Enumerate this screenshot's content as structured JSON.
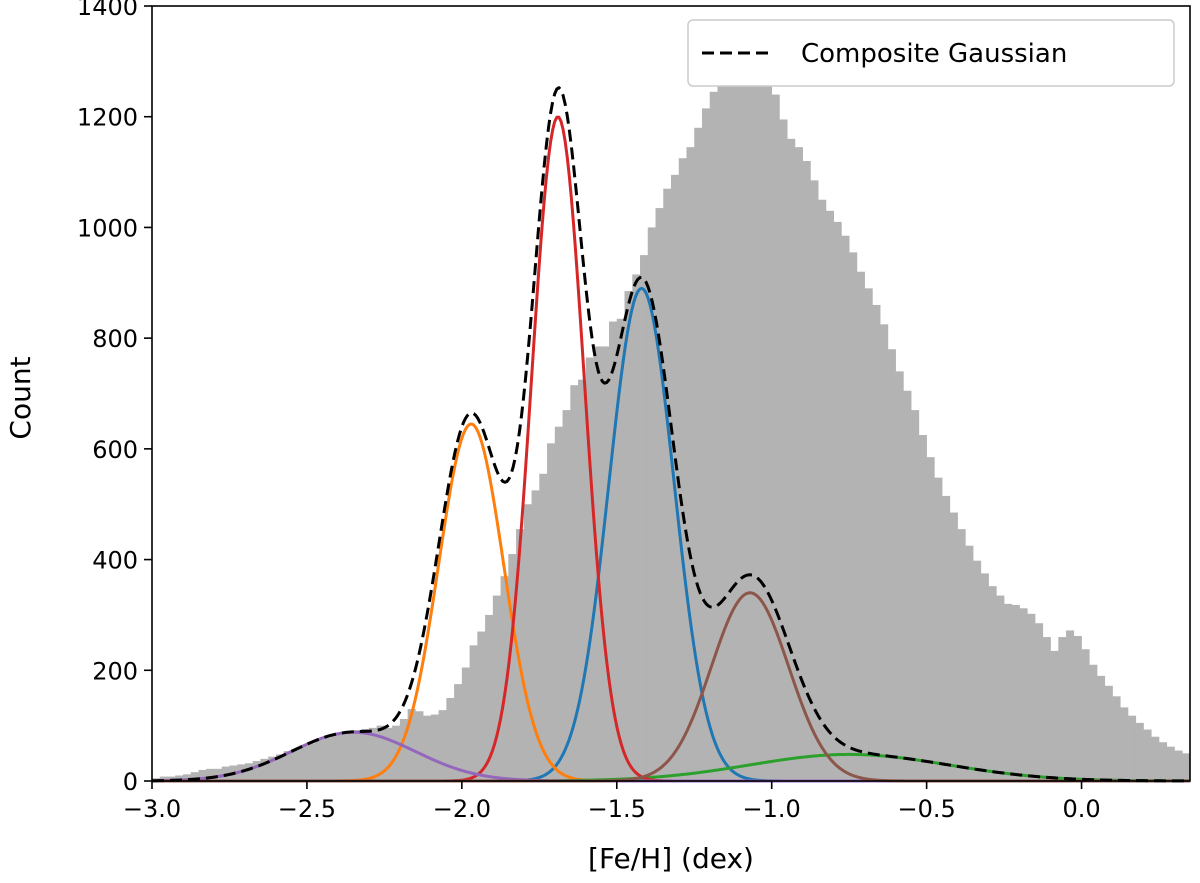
{
  "chart_data": {
    "type": "area",
    "title": "",
    "xlabel": "[Fe/H] (dex)",
    "ylabel": "Count",
    "xlim": [
      -3.0,
      0.35
    ],
    "ylim": [
      0,
      1400
    ],
    "x_ticks": [
      -3.0,
      -2.5,
      -2.0,
      -1.5,
      -1.0,
      -0.5,
      0.0
    ],
    "x_tick_labels": [
      "−3.0",
      "−2.5",
      "−2.0",
      "−1.5",
      "−1.0",
      "−0.5",
      "0.0"
    ],
    "y_ticks": [
      0,
      200,
      400,
      600,
      800,
      1000,
      1200,
      1400
    ],
    "y_tick_labels": [
      "0",
      "200",
      "400",
      "600",
      "800",
      "1000",
      "1200",
      "1400"
    ],
    "grid": false,
    "legend_position": "top-right",
    "histogram": {
      "name": "",
      "color": "#b3b3b3",
      "bin_width": 0.025,
      "bin_start": -3.0,
      "counts": [
        5,
        8,
        8,
        10,
        12,
        16,
        20,
        22,
        22,
        26,
        28,
        30,
        32,
        36,
        40,
        44,
        48,
        54,
        58,
        64,
        68,
        74,
        78,
        84,
        88,
        90,
        92,
        94,
        96,
        100,
        96,
        100,
        112,
        130,
        126,
        118,
        120,
        128,
        150,
        175,
        205,
        245,
        270,
        300,
        335,
        370,
        410,
        455,
        500,
        525,
        555,
        610,
        640,
        670,
        715,
        725,
        765,
        785,
        785,
        830,
        835,
        885,
        915,
        950,
        1000,
        1035,
        1070,
        1095,
        1125,
        1145,
        1180,
        1215,
        1245,
        1265,
        1280,
        1295,
        1290,
        1270,
        1280,
        1275,
        1240,
        1195,
        1160,
        1145,
        1120,
        1085,
        1050,
        1030,
        1010,
        985,
        955,
        920,
        890,
        860,
        825,
        780,
        740,
        705,
        670,
        625,
        585,
        548,
        515,
        485,
        455,
        425,
        398,
        375,
        352,
        335,
        320,
        318,
        312,
        302,
        285,
        260,
        235,
        260,
        272,
        262,
        238,
        210,
        190,
        172,
        153,
        133,
        118,
        105,
        93,
        80,
        70,
        62,
        55,
        50,
        46,
        42,
        39,
        36,
        34,
        32,
        30,
        28,
        26,
        24,
        22,
        20,
        18,
        16,
        14,
        12,
        10,
        9,
        8,
        7,
        6,
        5,
        4,
        3,
        3,
        2,
        2
      ]
    },
    "series": [
      {
        "color": "#1f77b4",
        "type": "gaussian",
        "amplitude": 890,
        "mean": -1.42,
        "sigma": 0.105
      },
      {
        "color": "#ff7f0e",
        "type": "gaussian",
        "amplitude": 645,
        "mean": -1.97,
        "sigma": 0.105
      },
      {
        "color": "#2ca02c",
        "type": "gaussian",
        "amplitude": 48,
        "mean": -0.75,
        "sigma": 0.32
      },
      {
        "color": "#d62728",
        "type": "gaussian",
        "amplitude": 1200,
        "mean": -1.69,
        "sigma": 0.085
      },
      {
        "color": "#9467bd",
        "type": "gaussian",
        "amplitude": 88,
        "mean": -2.35,
        "sigma": 0.2
      },
      {
        "color": "#8c564b",
        "type": "gaussian",
        "amplitude": 340,
        "mean": -1.07,
        "sigma": 0.125
      },
      {
        "name": "Composite Gaussian",
        "color": "#000000",
        "type": "sum",
        "dashed": true
      }
    ]
  }
}
